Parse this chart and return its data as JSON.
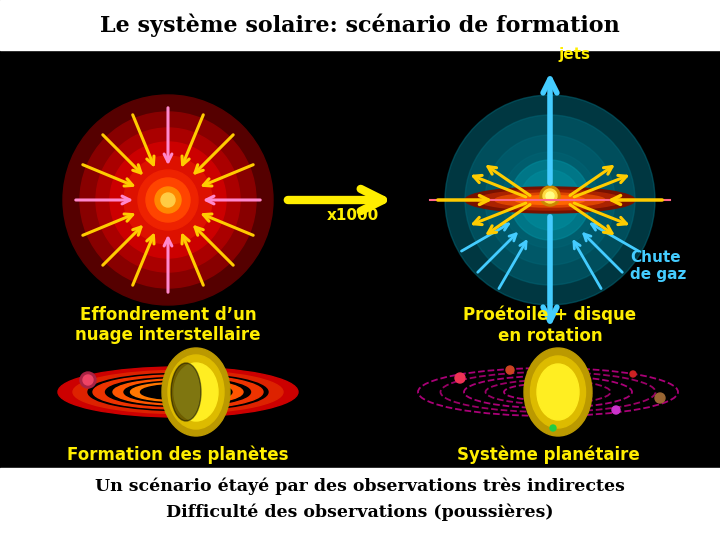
{
  "title": "Le système solaire: scénario de formation",
  "label_effondrement": "Effondrement d’un\nnuage interstellaire",
  "label_proetoile": "Proétoile + disque\nen rotation",
  "label_formation": "Formation des planètes",
  "label_systeme": "Système planétaire",
  "label_jets": "jets",
  "label_chute": "Chute\nde gaz",
  "label_x1000": "x1000",
  "footer_line1": "Un scénario étayé par des observations très indirectes",
  "footer_line2": "Difficulté des observations (poussières)"
}
